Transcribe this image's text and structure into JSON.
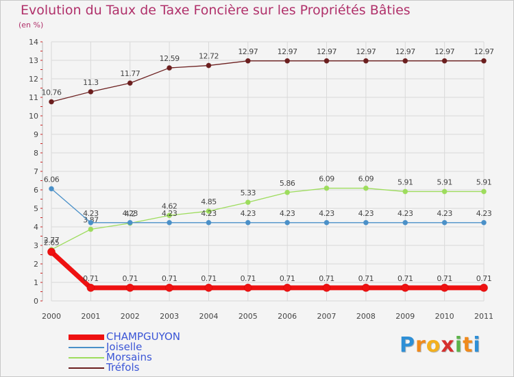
{
  "header": {
    "title": "Evolution du Taux de Taxe Foncière sur les Propriétés Bâties",
    "unit": "(en %)"
  },
  "logo": {
    "letters": [
      "P",
      "r",
      "o",
      "x",
      "i",
      "t",
      "i"
    ],
    "colors": [
      "#2e8fd6",
      "#f08a1c",
      "#f3b01e",
      "#d6302e",
      "#5cb34a",
      "#f08a1c",
      "#2e8fd6"
    ]
  },
  "colors": {
    "CHAMPGUYON": "#ee1111",
    "Joiselle": "#4a90c8",
    "Morsains": "#9ddc5c",
    "Tréfols": "#6b1e1e",
    "axis_text": "#444444",
    "grid": "#d9d9d9"
  },
  "chart_data": {
    "type": "line",
    "title": "Evolution du Taux de Taxe Foncière sur les Propriétés Bâties",
    "ylabel": "(en %)",
    "xlabel": "",
    "categories": [
      "2000",
      "2001",
      "2002",
      "2003",
      "2004",
      "2005",
      "2006",
      "2007",
      "2008",
      "2009",
      "2010",
      "2011"
    ],
    "ylim": [
      0,
      14
    ],
    "yticks": [
      0,
      1,
      2,
      3,
      4,
      5,
      6,
      7,
      8,
      9,
      10,
      11,
      12,
      13,
      14
    ],
    "grid": true,
    "legend_position": "bottom-left",
    "series": [
      {
        "name": "Tréfols",
        "values": [
          10.76,
          11.3,
          11.77,
          12.59,
          12.72,
          12.97,
          12.97,
          12.97,
          12.97,
          12.97,
          12.97,
          12.97
        ],
        "labels": [
          "10.76",
          "11.3",
          "11.77",
          "12.59",
          "12.72",
          "12.97",
          "12.97",
          "12.97",
          "12.97",
          "12.97",
          "12.97",
          "12.97"
        ]
      },
      {
        "name": "Morsains",
        "values": [
          2.77,
          3.87,
          4.2,
          4.62,
          4.85,
          5.33,
          5.86,
          6.09,
          6.09,
          5.91,
          5.91,
          5.91
        ],
        "labels": [
          "2.77",
          "3.87",
          "4.2",
          "4.62",
          "4.85",
          "5.33",
          "5.86",
          "6.09",
          "6.09",
          "5.91",
          "5.91",
          "5.91"
        ]
      },
      {
        "name": "Joiselle",
        "values": [
          6.06,
          4.23,
          4.23,
          4.23,
          4.23,
          4.23,
          4.23,
          4.23,
          4.23,
          4.23,
          4.23,
          4.23
        ],
        "labels": [
          "6.06",
          "4.23",
          "4.23",
          "4.23",
          "4.23",
          "4.23",
          "4.23",
          "4.23",
          "4.23",
          "4.23",
          "4.23",
          "4.23"
        ]
      },
      {
        "name": "CHAMPGUYON",
        "values": [
          2.65,
          0.71,
          0.71,
          0.71,
          0.71,
          0.71,
          0.71,
          0.71,
          0.71,
          0.71,
          0.71,
          0.71
        ],
        "labels": [
          "2.65",
          "0.71",
          "0.71",
          "0.71",
          "0.71",
          "0.71",
          "0.71",
          "0.71",
          "0.71",
          "0.71",
          "0.71",
          "0.71"
        ]
      }
    ],
    "legend": [
      "CHAMPGUYON",
      "Joiselle",
      "Morsains",
      "Tréfols"
    ]
  }
}
